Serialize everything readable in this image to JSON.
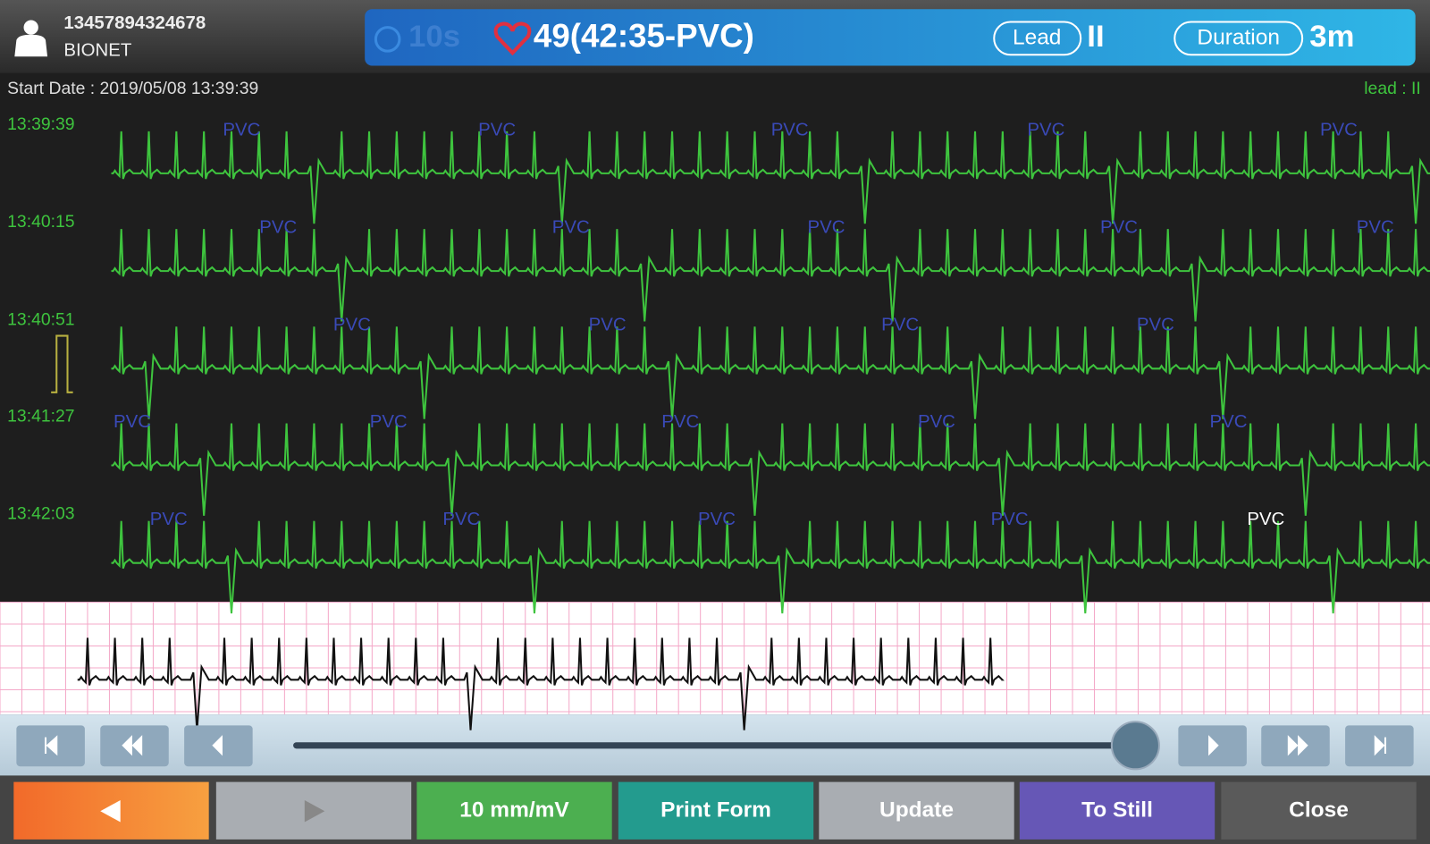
{
  "header": {
    "patient_id": "13457894324678",
    "patient_name": "BIONET",
    "timer": "10s",
    "event": "49(42:35-PVC)",
    "lead_label": "Lead",
    "lead_value": "II",
    "duration_label": "Duration",
    "duration_value": "3m"
  },
  "info": {
    "start_date": "Start Date : 2019/05/08 13:39:39",
    "lead": "lead : II"
  },
  "rows": [
    {
      "time": "13:39:39",
      "labels": [
        "PVC",
        "PVC",
        "PVC",
        "PVC",
        "PVC"
      ]
    },
    {
      "time": "13:40:15",
      "labels": [
        "PVC",
        "PVC",
        "PVC",
        "PVC",
        "PVC"
      ]
    },
    {
      "time": "13:40:51",
      "labels": [
        "PVC",
        "PVC",
        "PVC",
        "PVC"
      ]
    },
    {
      "time": "13:41:27",
      "labels": [
        "PVC",
        "PVC",
        "PVC",
        "PVC",
        "PVC"
      ]
    },
    {
      "time": "13:42:03",
      "labels": [
        "PVC",
        "PVC",
        "PVC",
        "PVC",
        "PVC"
      ]
    }
  ],
  "buttons": [
    "10 mm/mV",
    "Print Form",
    "Update",
    "To Still",
    "Close"
  ]
}
